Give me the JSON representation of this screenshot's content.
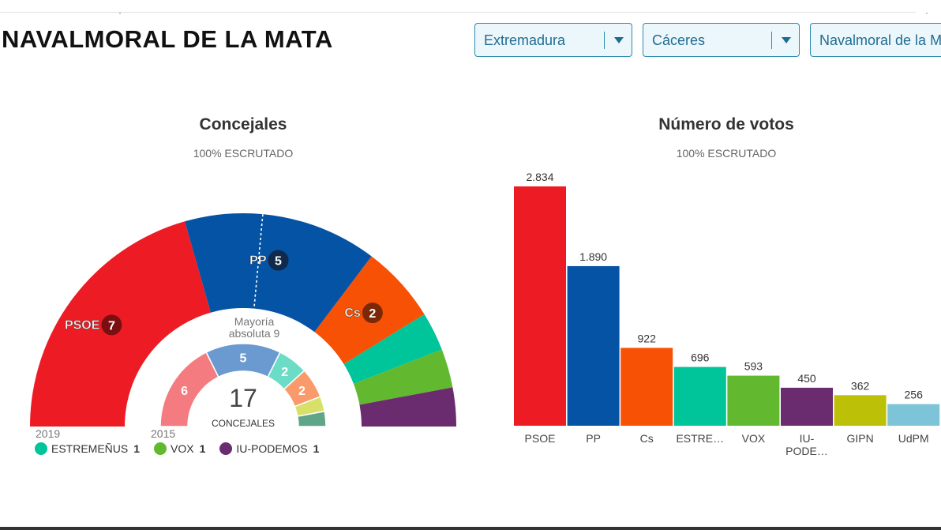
{
  "header": {
    "title": "NAVALMORAL DE LA MATA",
    "selectors": [
      {
        "value": "Extremadura"
      },
      {
        "value": "Cáceres"
      },
      {
        "value": "Navalmoral de la M"
      }
    ]
  },
  "seats_panel": {
    "title": "Concejales",
    "subtitle": "100% ESCRUTADO",
    "majority_line1": "Mayoría",
    "majority_line2": "absoluta 9",
    "total": "17",
    "total_label": "CONCEJALES",
    "year_current": "2019",
    "year_previous": "2015"
  },
  "votes_panel": {
    "title": "Número de votos",
    "subtitle": "100% ESCRUTADO"
  },
  "legend": [
    {
      "name": "ESTREMEÑUS",
      "seats": "1",
      "color": "#00c49a"
    },
    {
      "name": "VOX",
      "seats": "1",
      "color": "#62b92f"
    },
    {
      "name": "IU-PODEMOS",
      "seats": "1",
      "color": "#6a2c6e"
    }
  ],
  "chart_data": [
    {
      "type": "pie",
      "title": "Concejales",
      "subtitle": "100% ESCRUTADO",
      "year": "2019",
      "total": 17,
      "majority": 9,
      "slices": [
        {
          "party": "PSOE",
          "seats": 7,
          "color": "#ed1c24",
          "badge": "#7a0f12"
        },
        {
          "party": "PP",
          "seats": 5,
          "color": "#0553a4",
          "badge": "#0f2a4d"
        },
        {
          "party": "Cs",
          "seats": 2,
          "color": "#f75106",
          "badge": "#7a2806"
        },
        {
          "party": "ESTREMEÑUS",
          "seats": 1,
          "color": "#00c49a"
        },
        {
          "party": "VOX",
          "seats": 1,
          "color": "#62b92f"
        },
        {
          "party": "IU-PODEMOS",
          "seats": 1,
          "color": "#6a2c6e"
        }
      ]
    },
    {
      "type": "pie",
      "year": "2015",
      "total": 17,
      "slices": [
        {
          "seats": 6,
          "color": "#f47b80"
        },
        {
          "seats": 5,
          "color": "#6a9acf"
        },
        {
          "seats": 2,
          "color": "#6cdcc6"
        },
        {
          "seats": 2,
          "color": "#fa9a6a"
        },
        {
          "seats": 1,
          "color": "#d7e16a"
        },
        {
          "seats": 1,
          "color": "#5fa588"
        }
      ]
    },
    {
      "type": "bar",
      "title": "Número de votos",
      "subtitle": "100% ESCRUTADO",
      "categories": [
        "PSOE",
        "PP",
        "Cs",
        "ESTRE…",
        "VOX",
        "IU-PODE…",
        "GIPN",
        "UdPM"
      ],
      "values": [
        2834,
        1890,
        922,
        696,
        593,
        450,
        362,
        256
      ],
      "value_labels": [
        "2.834",
        "1.890",
        "922",
        "696",
        "593",
        "450",
        "362",
        "256"
      ],
      "colors": [
        "#ed1c24",
        "#0553a4",
        "#f75106",
        "#00c49a",
        "#62b92f",
        "#6a2c6e",
        "#bcc107",
        "#7ec4d9"
      ],
      "ylim": [
        0,
        2834
      ]
    }
  ]
}
